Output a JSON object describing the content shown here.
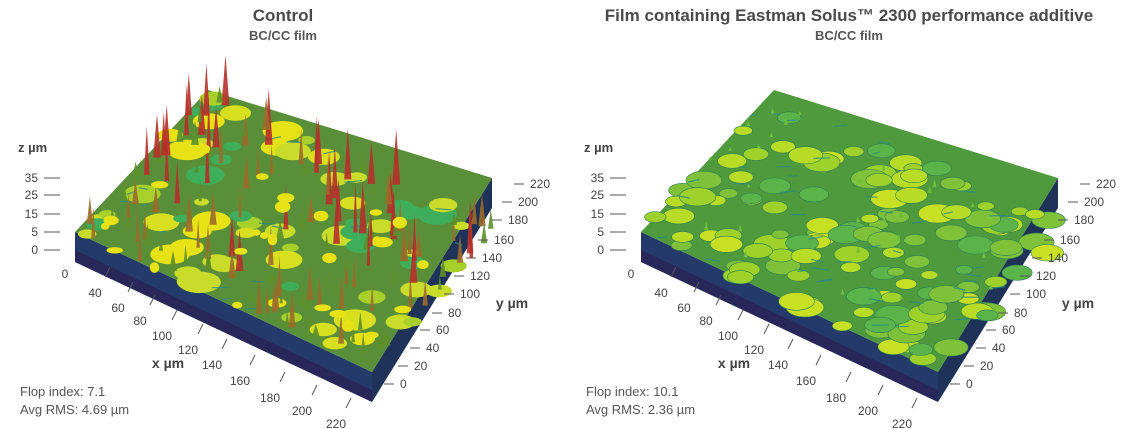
{
  "chart_data": [
    {
      "type": "heatmap",
      "title": "Control",
      "subtitle": "BC/CC film",
      "xlabel": "x µm",
      "ylabel": "y µm",
      "zlabel": "z µm",
      "x_ticks": [
        40,
        60,
        80,
        100,
        120,
        140,
        160,
        180,
        200,
        220
      ],
      "x_axis_zero": "0",
      "y_ticks": [
        0,
        20,
        40,
        60,
        80,
        100,
        120,
        140,
        160,
        180,
        200,
        220
      ],
      "z_ticks": [
        35,
        25,
        15,
        5,
        0
      ],
      "stats": [
        "Flop index: 7.1",
        "Avg RMS: 4.69 µm"
      ],
      "flop_index": 7.1,
      "avg_rms_um": 4.69,
      "colors": [
        "#1d2a5a",
        "#1f6f8a",
        "#3fae5a",
        "#b9dc22",
        "#e6e215",
        "#c0392b"
      ]
    },
    {
      "type": "heatmap",
      "title": "Film containing Eastman Solus™ 2300 performance additive",
      "subtitle": "BC/CC film",
      "xlabel": "x µm",
      "ylabel": "y µm",
      "zlabel": "z µm",
      "x_ticks": [
        40,
        60,
        80,
        100,
        120,
        140,
        160,
        180,
        200,
        220
      ],
      "x_axis_zero": "0",
      "y_ticks": [
        0,
        20,
        40,
        60,
        80,
        100,
        120,
        140,
        160,
        180,
        200,
        220
      ],
      "z_ticks": [
        35,
        25,
        15,
        5,
        0
      ],
      "stats": [
        "Flop index: 10.1",
        "Avg RMS: 2.36 µm"
      ],
      "flop_index": 10.1,
      "avg_rms_um": 2.36,
      "colors": [
        "#1d2a5a",
        "#1f6f8a",
        "#3fae5a",
        "#9ed12a",
        "#c8e024"
      ]
    }
  ]
}
